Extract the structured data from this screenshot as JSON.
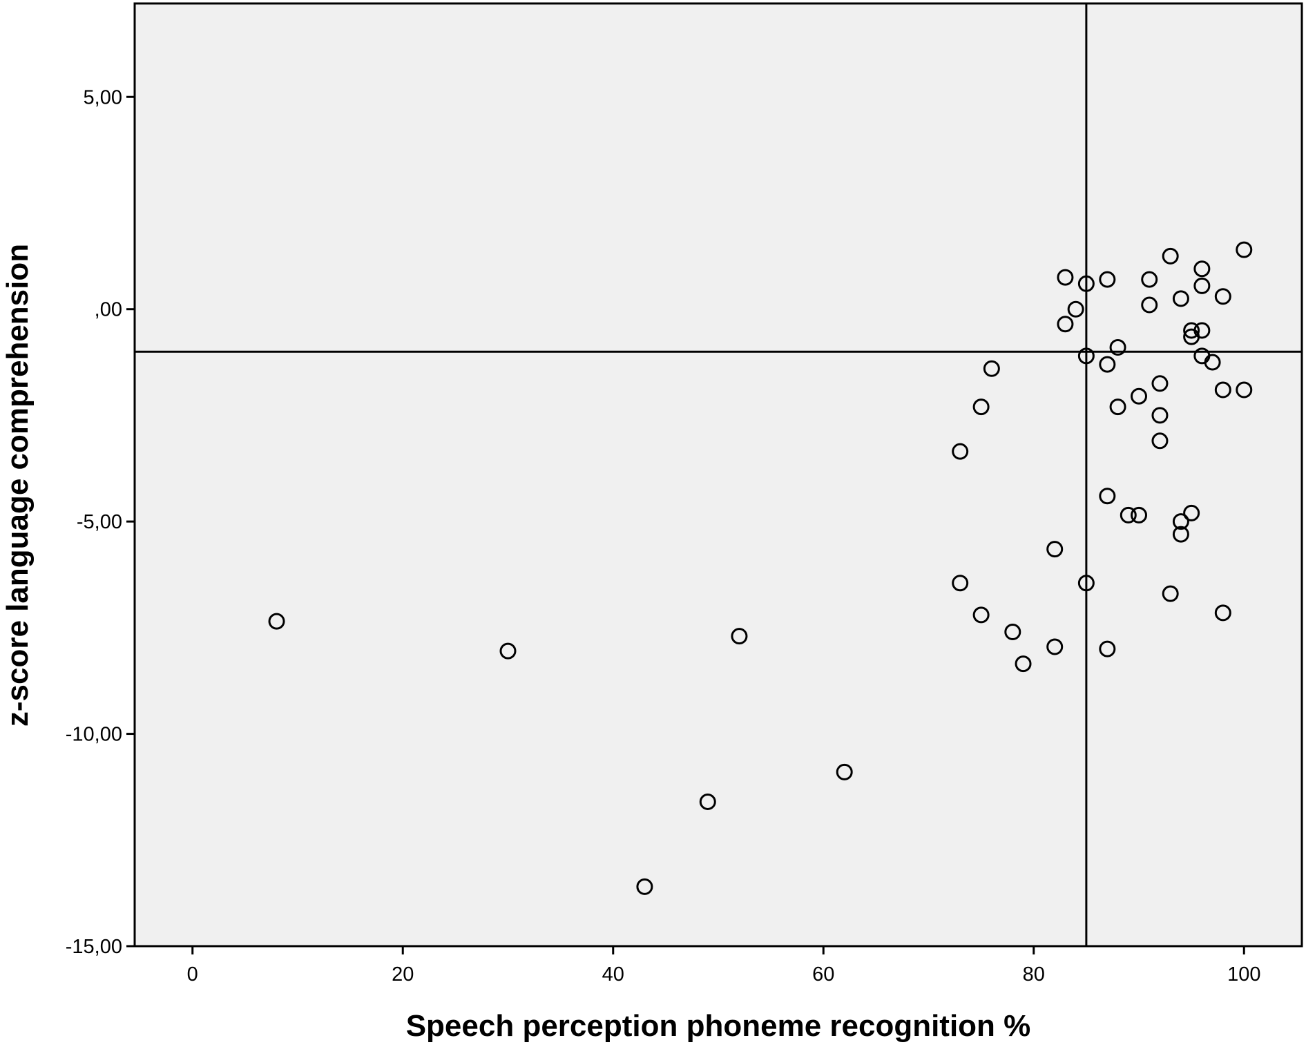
{
  "chart_data": {
    "type": "scatter",
    "title": "",
    "xlabel": "Speech perception phoneme recognition %",
    "ylabel": "z-score language comprehension",
    "xlim": [
      -5.5,
      105.5
    ],
    "ylim": [
      -15,
      7.2
    ],
    "x_ticks": [
      0,
      20,
      40,
      60,
      80,
      100
    ],
    "x_tick_labels": [
      "0",
      "20",
      "40",
      "60",
      "80",
      "100"
    ],
    "y_ticks": [
      5,
      0,
      -5,
      -10,
      -15
    ],
    "y_tick_labels": [
      "5,00",
      ",00",
      "-5,00",
      "-10,00",
      "-15,00"
    ],
    "grid": false,
    "plot_background": "#f0f0f0",
    "marker": "open-circle",
    "reference_lines": {
      "x": 85,
      "y": -1
    },
    "points": [
      {
        "x": 8,
        "y": -7.35
      },
      {
        "x": 30,
        "y": -8.05
      },
      {
        "x": 43,
        "y": -13.6
      },
      {
        "x": 49,
        "y": -11.6
      },
      {
        "x": 52,
        "y": -7.7
      },
      {
        "x": 62,
        "y": -10.9
      },
      {
        "x": 73,
        "y": -3.35
      },
      {
        "x": 73,
        "y": -6.45
      },
      {
        "x": 75,
        "y": -2.3
      },
      {
        "x": 75,
        "y": -7.2
      },
      {
        "x": 76,
        "y": -1.4
      },
      {
        "x": 78,
        "y": -7.6
      },
      {
        "x": 79,
        "y": -8.35
      },
      {
        "x": 82,
        "y": -5.65
      },
      {
        "x": 82,
        "y": -7.95
      },
      {
        "x": 83,
        "y": 0.75
      },
      {
        "x": 83,
        "y": -0.35
      },
      {
        "x": 84,
        "y": 0.0
      },
      {
        "x": 85,
        "y": 0.6
      },
      {
        "x": 85,
        "y": -1.1
      },
      {
        "x": 85,
        "y": -6.45
      },
      {
        "x": 87,
        "y": 0.7
      },
      {
        "x": 87,
        "y": -1.3
      },
      {
        "x": 87,
        "y": -4.4
      },
      {
        "x": 87,
        "y": -8.0
      },
      {
        "x": 88,
        "y": -0.9
      },
      {
        "x": 88,
        "y": -2.3
      },
      {
        "x": 89,
        "y": -4.85
      },
      {
        "x": 90,
        "y": -2.05
      },
      {
        "x": 90,
        "y": -4.85
      },
      {
        "x": 91,
        "y": 0.7
      },
      {
        "x": 91,
        "y": 0.1
      },
      {
        "x": 92,
        "y": -1.75
      },
      {
        "x": 92,
        "y": -2.5
      },
      {
        "x": 92,
        "y": -3.1
      },
      {
        "x": 93,
        "y": 1.25
      },
      {
        "x": 93,
        "y": -6.7
      },
      {
        "x": 94,
        "y": 0.25
      },
      {
        "x": 94,
        "y": -5.0
      },
      {
        "x": 94,
        "y": -5.3
      },
      {
        "x": 95,
        "y": -0.5
      },
      {
        "x": 95,
        "y": -0.65
      },
      {
        "x": 95,
        "y": -4.8
      },
      {
        "x": 96,
        "y": 0.95
      },
      {
        "x": 96,
        "y": 0.55
      },
      {
        "x": 96,
        "y": -0.5
      },
      {
        "x": 96,
        "y": -1.1
      },
      {
        "x": 97,
        "y": -1.25
      },
      {
        "x": 98,
        "y": 0.3
      },
      {
        "x": 98,
        "y": -1.9
      },
      {
        "x": 98,
        "y": -7.15
      },
      {
        "x": 100,
        "y": 1.4
      },
      {
        "x": 100,
        "y": -1.9
      }
    ]
  }
}
